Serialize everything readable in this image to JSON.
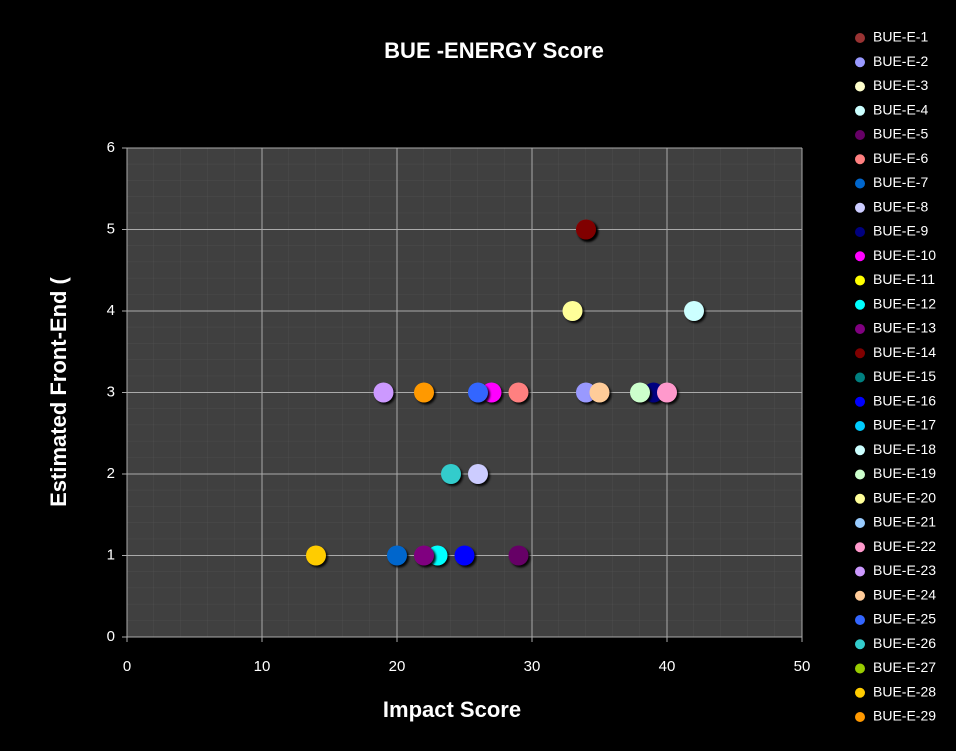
{
  "chart_data": {
    "type": "scatter",
    "title": "BUE -ENERGY Score",
    "x_label": "Impact Score",
    "y_label": "Estimated Front-End (",
    "xlim": [
      0,
      50
    ],
    "xticks": [
      0,
      10,
      20,
      30,
      40,
      50
    ],
    "ylim": [
      0,
      6
    ],
    "yticks": [
      0,
      1,
      2,
      3,
      4,
      5,
      6
    ],
    "grid": true,
    "legend": "right",
    "series": [
      {
        "name": "BUE-E-1",
        "color": "#993333",
        "x": [
          34
        ],
        "values": [
          5
        ]
      },
      {
        "name": "BUE-E-2",
        "color": "#9999ff",
        "x": [
          34
        ],
        "values": [
          3
        ]
      },
      {
        "name": "BUE-E-3",
        "color": "#ffffcc",
        "x": [],
        "values": []
      },
      {
        "name": "BUE-E-4",
        "color": "#ccffff",
        "x": [],
        "values": []
      },
      {
        "name": "BUE-E-5",
        "color": "#660066",
        "x": [
          29
        ],
        "values": [
          1
        ]
      },
      {
        "name": "BUE-E-6",
        "color": "#ff8080",
        "x": [
          29
        ],
        "values": [
          3
        ]
      },
      {
        "name": "BUE-E-7",
        "color": "#0066cc",
        "x": [
          20
        ],
        "values": [
          1
        ]
      },
      {
        "name": "BUE-E-8",
        "color": "#ccccff",
        "x": [
          26
        ],
        "values": [
          2
        ]
      },
      {
        "name": "BUE-E-9",
        "color": "#000080",
        "x": [
          39
        ],
        "values": [
          3
        ]
      },
      {
        "name": "BUE-E-10",
        "color": "#ff00ff",
        "x": [
          27
        ],
        "values": [
          3
        ]
      },
      {
        "name": "BUE-E-11",
        "color": "#ffff00",
        "x": [],
        "values": []
      },
      {
        "name": "BUE-E-12",
        "color": "#00ffff",
        "x": [
          23
        ],
        "values": [
          1
        ]
      },
      {
        "name": "BUE-E-13",
        "color": "#800080",
        "x": [
          22
        ],
        "values": [
          1
        ]
      },
      {
        "name": "BUE-E-14",
        "color": "#800000",
        "x": [
          34
        ],
        "values": [
          5
        ]
      },
      {
        "name": "BUE-E-15",
        "color": "#008080",
        "x": [],
        "values": []
      },
      {
        "name": "BUE-E-16",
        "color": "#0000ff",
        "x": [
          25
        ],
        "values": [
          1
        ]
      },
      {
        "name": "BUE-E-17",
        "color": "#00ccff",
        "x": [],
        "values": []
      },
      {
        "name": "BUE-E-18",
        "color": "#ccffff",
        "x": [
          42
        ],
        "values": [
          4
        ]
      },
      {
        "name": "BUE-E-19",
        "color": "#ccffcc",
        "x": [
          38
        ],
        "values": [
          3
        ]
      },
      {
        "name": "BUE-E-20",
        "color": "#ffff99",
        "x": [
          33
        ],
        "values": [
          4
        ]
      },
      {
        "name": "BUE-E-21",
        "color": "#99ccff",
        "x": [],
        "values": []
      },
      {
        "name": "BUE-E-22",
        "color": "#ff99cc",
        "x": [
          40
        ],
        "values": [
          3
        ]
      },
      {
        "name": "BUE-E-23",
        "color": "#cc99ff",
        "x": [
          19
        ],
        "values": [
          3
        ]
      },
      {
        "name": "BUE-E-24",
        "color": "#ffcc99",
        "x": [
          35
        ],
        "values": [
          3
        ]
      },
      {
        "name": "BUE-E-25",
        "color": "#3366ff",
        "x": [
          26
        ],
        "values": [
          3
        ]
      },
      {
        "name": "BUE-E-26",
        "color": "#33cccc",
        "x": [
          24
        ],
        "values": [
          2
        ]
      },
      {
        "name": "BUE-E-27",
        "color": "#99cc00",
        "x": [],
        "values": []
      },
      {
        "name": "BUE-E-28",
        "color": "#ffcc00",
        "x": [
          14
        ],
        "values": [
          1
        ]
      },
      {
        "name": "BUE-E-29",
        "color": "#ff9900",
        "x": [
          22
        ],
        "values": [
          3
        ]
      }
    ]
  }
}
